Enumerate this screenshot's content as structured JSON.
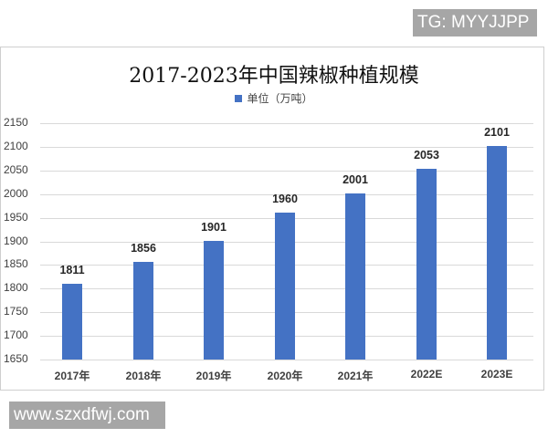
{
  "watermarks": {
    "top_right": "TG: MYYJJPP",
    "bottom_left": "www.szxdfwj.com"
  },
  "colors": {
    "bar": "#4472c4",
    "gridline": "#d9d9d9",
    "badge_bg": "#a6a6a6"
  },
  "chart_data": {
    "type": "bar",
    "title": "2017-2023年中国辣椒种植规模",
    "legend": [
      "单位（万吨）"
    ],
    "legend_position": "top",
    "categories": [
      "2017年",
      "2018年",
      "2019年",
      "2020年",
      "2021年",
      "2022E",
      "2023E"
    ],
    "series": [
      {
        "name": "单位（万吨）",
        "values": [
          1811,
          1856,
          1901,
          1960,
          2001,
          2053,
          2101
        ]
      }
    ],
    "data_labels": [
      "1811",
      "1856",
      "1901",
      "1960",
      "2001",
      "2053",
      "2101"
    ],
    "xlabel": "",
    "ylabel": "",
    "ylim": [
      1650,
      2150
    ],
    "yticks": [
      "2150",
      "2100",
      "2050",
      "2000",
      "1950",
      "1900",
      "1850",
      "1800",
      "1750",
      "1700",
      "1650"
    ],
    "grid": true
  }
}
